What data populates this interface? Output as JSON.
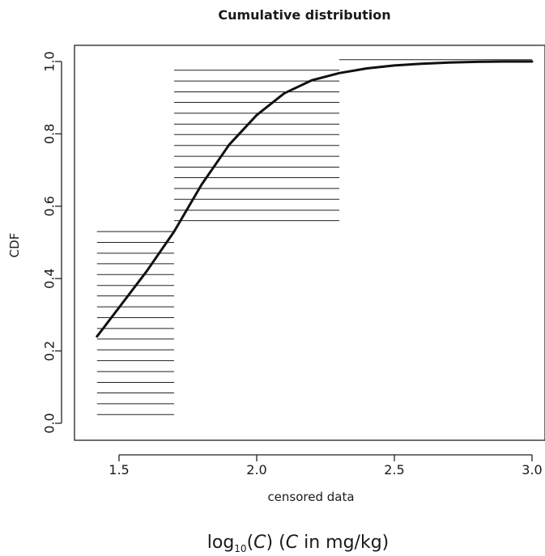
{
  "caption": {
    "log_prefix": "log",
    "log_base": "10",
    "after_base": "(",
    "variable": "C",
    "close_paren": ")",
    "space": " ",
    "open_paren2": "(",
    "variable2": "C",
    "units": " in mg/kg)"
  },
  "chart_data": {
    "type": "line",
    "title": "Cumulative distribution",
    "xlabel": "censored data",
    "ylabel": "CDF",
    "xlim": [
      1.4,
      3.0
    ],
    "ylim": [
      0.0,
      1.0
    ],
    "x_ticks": [
      1.5,
      2.0,
      2.5,
      3.0
    ],
    "x_tick_labels": [
      "1.5",
      "2.0",
      "2.5",
      "3.0"
    ],
    "y_ticks": [
      0.0,
      0.2,
      0.4,
      0.6,
      0.8,
      1.0
    ],
    "y_tick_labels": [
      "0.0",
      "0.2",
      "0.4",
      "0.6",
      "0.8",
      "1.0"
    ],
    "grid": false,
    "colors": {
      "line": "#111111",
      "segments": "#222222",
      "axes": "#222222"
    },
    "censored_intervals": [
      {
        "x_from": 1.42,
        "x_to": 1.7,
        "y_values": [
          0.024,
          0.054,
          0.084,
          0.113,
          0.143,
          0.173,
          0.203,
          0.233,
          0.262,
          0.292,
          0.322,
          0.352,
          0.381,
          0.411,
          0.441,
          0.47,
          0.5,
          0.53
        ]
      },
      {
        "x_from": 1.7,
        "x_to": 2.3,
        "y_values": [
          0.56,
          0.589,
          0.619,
          0.649,
          0.679,
          0.708,
          0.738,
          0.768,
          0.798,
          0.827,
          0.857,
          0.887,
          0.916,
          0.946,
          0.976
        ]
      },
      {
        "x_from": 2.3,
        "x_to": 3.0,
        "y_values": [
          1.005
        ]
      }
    ],
    "series": [
      {
        "x": [
          1.42,
          1.5,
          1.6,
          1.7,
          1.8,
          1.9,
          2.0,
          2.1,
          2.2,
          2.3,
          2.4,
          2.5,
          2.6,
          2.7,
          2.8,
          2.9,
          3.0
        ],
        "y": [
          0.24,
          0.32,
          0.42,
          0.53,
          0.66,
          0.77,
          0.852,
          0.912,
          0.948,
          0.968,
          0.981,
          0.989,
          0.994,
          0.997,
          0.999,
          1.0,
          1.0
        ]
      }
    ]
  }
}
